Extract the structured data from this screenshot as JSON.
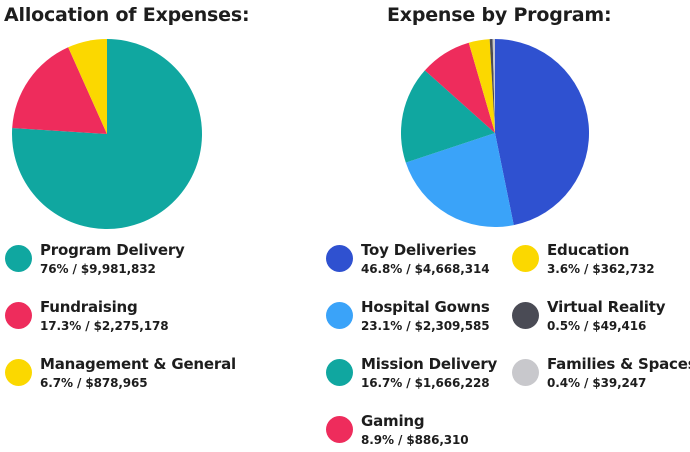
{
  "chart_data": [
    {
      "type": "pie",
      "title": "Allocation of Expenses:",
      "legend": "bottom",
      "slices": [
        {
          "label": "Program Delivery",
          "percent": 76,
          "value_text": "76% / $9,981,832",
          "color": "#10a7a0"
        },
        {
          "label": "Fundraising",
          "percent": 17.3,
          "value_text": "17.3% / $2,275,178",
          "color": "#ee2c5c"
        },
        {
          "label": "Management & General",
          "percent": 6.7,
          "value_text": "6.7% / $878,965",
          "color": "#fbd800"
        }
      ]
    },
    {
      "type": "pie",
      "title": "Expense by Program:",
      "legend": "bottom",
      "slices": [
        {
          "label": "Toy Deliveries",
          "percent": 46.8,
          "value_text": "46.8% / $4,668,314",
          "color": "#2f51d0"
        },
        {
          "label": "Hospital Gowns",
          "percent": 23.1,
          "value_text": "23.1% / $2,309,585",
          "color": "#3aa3f9"
        },
        {
          "label": "Mission Delivery",
          "percent": 16.7,
          "value_text": "16.7% / $1,666,228",
          "color": "#10a7a0"
        },
        {
          "label": "Gaming",
          "percent": 8.9,
          "value_text": "8.9% / $886,310",
          "color": "#ee2c5c"
        },
        {
          "label": "Education",
          "percent": 3.6,
          "value_text": "3.6% / $362,732",
          "color": "#fbd800"
        },
        {
          "label": "Virtual Reality",
          "percent": 0.5,
          "value_text": "0.5% / $49,416",
          "color": "#4a4b55"
        },
        {
          "label": "Families & Spaces",
          "percent": 0.4,
          "value_text": "0.4% / $39,247",
          "color": "#c8c8cc"
        }
      ]
    }
  ]
}
